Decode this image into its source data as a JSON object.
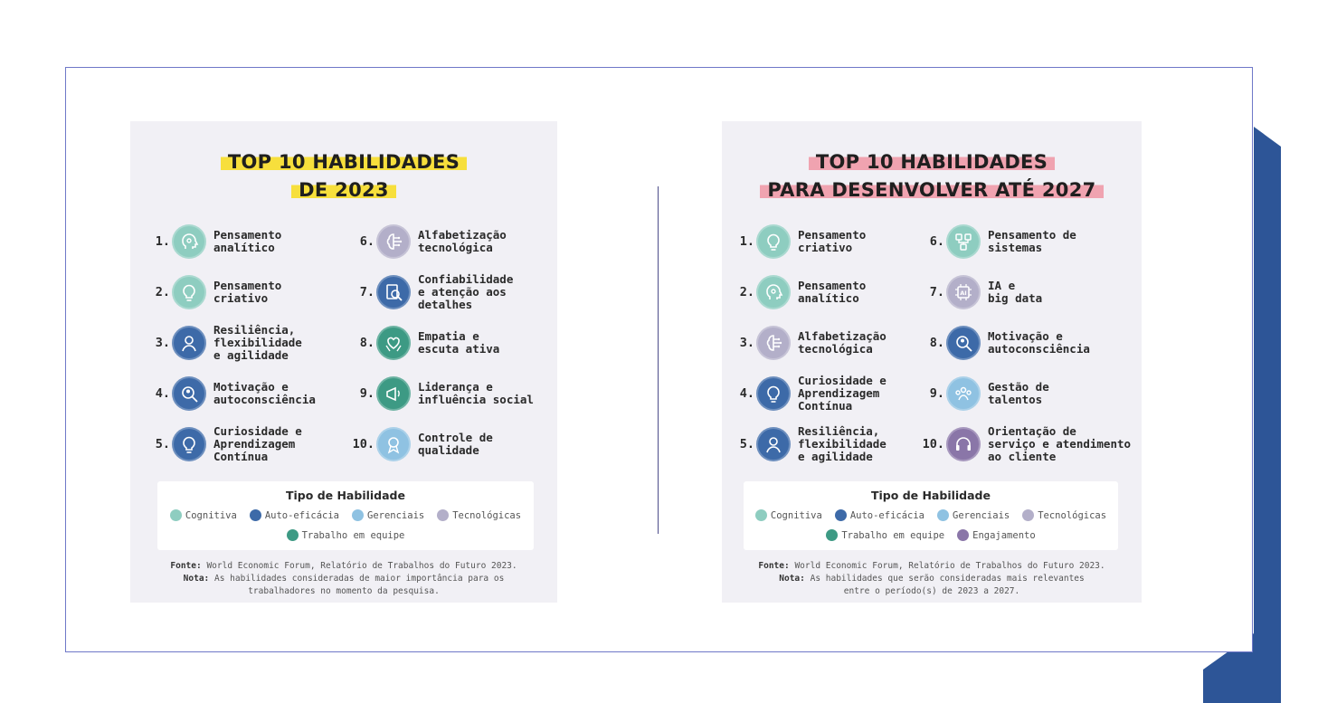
{
  "colors": {
    "cognitiva": "#8ecdc0",
    "auto_eficacia": "#3d6aa8",
    "gerenciais": "#8fc2e2",
    "tecnologicas": "#b3afc9",
    "trabalho_em_equipe": "#3d9a84",
    "engajamento": "#8a76a8"
  },
  "left": {
    "title_line1": "TOP 10 HABILIDADES",
    "title_line2": "DE 2023",
    "skills": [
      {
        "num": "1.",
        "label": "Pensamento\nanalítico",
        "color": "#8ecdc0",
        "icon": "head-icon"
      },
      {
        "num": "2.",
        "label": "Pensamento\ncriativo",
        "color": "#8ecdc0",
        "icon": "lightbulb-icon"
      },
      {
        "num": "3.",
        "label": "Resiliência,\nflexibilidade\ne agilidade",
        "color": "#3d6aa8",
        "icon": "person-icon"
      },
      {
        "num": "4.",
        "label": "Motivação e\nautoconsciência",
        "color": "#3d6aa8",
        "icon": "magnifier-person-icon"
      },
      {
        "num": "5.",
        "label": "Curiosidade e\nAprendizagem\nContínua",
        "color": "#3d6aa8",
        "icon": "lightbulb-icon"
      },
      {
        "num": "6.",
        "label": "Alfabetização\ntecnológica",
        "color": "#b3afc9",
        "icon": "brain-circuit-icon"
      },
      {
        "num": "7.",
        "label": "Confiabilidade\ne atenção aos\ndetalhes",
        "color": "#3d6aa8",
        "icon": "document-magnifier-icon"
      },
      {
        "num": "8.",
        "label": "Empatia e\nescuta ativa",
        "color": "#3d9a84",
        "icon": "heart-hands-icon"
      },
      {
        "num": "9.",
        "label": "Liderança e\ninfluência social",
        "color": "#3d9a84",
        "icon": "megaphone-icon"
      },
      {
        "num": "10.",
        "label": "Controle de\nqualidade",
        "color": "#8fc2e2",
        "icon": "badge-icon"
      }
    ],
    "legend_title": "Tipo de Habilidade",
    "legend_row1": [
      {
        "label": "Cognitiva",
        "color": "#8ecdc0"
      },
      {
        "label": "Auto-eficácia",
        "color": "#3d6aa8"
      },
      {
        "label": "Gerenciais",
        "color": "#8fc2e2"
      },
      {
        "label": "Tecnológicas",
        "color": "#b3afc9"
      }
    ],
    "legend_row2": [
      {
        "label": "Trabalho em equipe",
        "color": "#3d9a84"
      }
    ],
    "fonte_label": "Fonte:",
    "fonte_text": "World Economic Forum, Relatório de Trabalhos do Futuro 2023.",
    "nota_label": "Nota:",
    "nota_text": "As habilidades consideradas de maior importância para os",
    "nota_text2": "trabalhadores no momento da pesquisa."
  },
  "right": {
    "title_line1": "TOP 10 HABILIDADES",
    "title_line2": "PARA DESENVOLVER ATÉ 2027",
    "skills": [
      {
        "num": "1.",
        "label": "Pensamento\ncriativo",
        "color": "#8ecdc0",
        "icon": "lightbulb-icon"
      },
      {
        "num": "2.",
        "label": "Pensamento\nanalítico",
        "color": "#8ecdc0",
        "icon": "head-icon"
      },
      {
        "num": "3.",
        "label": "Alfabetização\ntecnológica",
        "color": "#b3afc9",
        "icon": "brain-circuit-icon"
      },
      {
        "num": "4.",
        "label": "Curiosidade e\nAprendizagem\nContínua",
        "color": "#3d6aa8",
        "icon": "lightbulb-icon"
      },
      {
        "num": "5.",
        "label": "Resiliência,\nflexibilidade\ne agilidade",
        "color": "#3d6aa8",
        "icon": "person-icon"
      },
      {
        "num": "6.",
        "label": "Pensamento de\nsistemas",
        "color": "#8ecdc0",
        "icon": "network-icon"
      },
      {
        "num": "7.",
        "label": "IA e\nbig data",
        "color": "#b3afc9",
        "icon": "ai-chip-icon"
      },
      {
        "num": "8.",
        "label": "Motivação e\nautoconsciência",
        "color": "#3d6aa8",
        "icon": "magnifier-person-icon"
      },
      {
        "num": "9.",
        "label": "Gestão de\ntalentos",
        "color": "#8fc2e2",
        "icon": "team-icon"
      },
      {
        "num": "10.",
        "label": "Orientação de\nserviço e atendimento\nao cliente",
        "color": "#8a76a8",
        "icon": "headset-icon"
      }
    ],
    "legend_title": "Tipo de Habilidade",
    "legend_row1": [
      {
        "label": "Cognitiva",
        "color": "#8ecdc0"
      },
      {
        "label": "Auto-eficácia",
        "color": "#3d6aa8"
      },
      {
        "label": "Gerenciais",
        "color": "#8fc2e2"
      },
      {
        "label": "Tecnológicas",
        "color": "#b3afc9"
      }
    ],
    "legend_row2": [
      {
        "label": "Trabalho em equipe",
        "color": "#3d9a84"
      },
      {
        "label": "Engajamento",
        "color": "#8a76a8"
      }
    ],
    "fonte_label": "Fonte:",
    "fonte_text": "World Economic Forum, Relatório de Trabalhos do Futuro 2023.",
    "nota_label": "Nota:",
    "nota_text": "As habilidades que serão consideradas mais relevantes",
    "nota_text2": "entre o período(s) de  2023 a 2027."
  }
}
